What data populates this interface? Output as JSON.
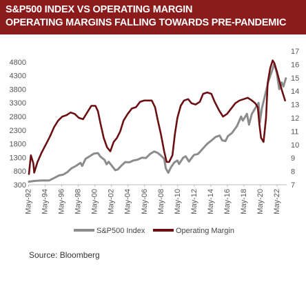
{
  "header": {
    "title": "S&P500 INDEX VS OPERATING MARGIN",
    "subtitle": "OPERATING MARGINS FALLING TOWARDS PRE-PANDEMIC"
  },
  "source": "Source:  Bloomberg",
  "colors": {
    "header_bg": "#8c1b1b",
    "sp500": "#8c8c8c",
    "margin": "#6b0f12",
    "grid": "#dddddd"
  },
  "chart_data": {
    "type": "line",
    "title": "S&P500 INDEX VS OPERATING MARGIN",
    "subtitle": "OPERATING MARGINS FALLING TOWARDS PRE-PANDEMIC",
    "xlim": [
      1992.37,
      2023.5
    ],
    "x_ticks": [
      "May-92",
      "May-94",
      "May-96",
      "May-98",
      "May-00",
      "May-02",
      "May-04",
      "May-06",
      "May-08",
      "May-10",
      "May-12",
      "May-14",
      "May-16",
      "May-18",
      "May-20",
      "May-22"
    ],
    "y_left": {
      "lim": [
        300,
        5200
      ],
      "ticks": [
        "300",
        "800",
        "1300",
        "1800",
        "2300",
        "2800",
        "3300",
        "3800",
        "4300",
        "4800"
      ]
    },
    "y_right": {
      "lim": [
        7,
        17
      ],
      "ticks": [
        "7",
        "8",
        "9",
        "10",
        "11",
        "12",
        "13",
        "14",
        "15",
        "16",
        "17"
      ]
    },
    "legend": {
      "position": "bottom",
      "entries": [
        "S&P500 Index",
        "Operating Margin"
      ]
    },
    "grid": false,
    "series": [
      {
        "name": "S&P500 Index",
        "axis": "left",
        "points": [
          [
            1992.37,
            410
          ],
          [
            1993.0,
            440
          ],
          [
            1994.0,
            460
          ],
          [
            1994.8,
            455
          ],
          [
            1995.5,
            560
          ],
          [
            1996.0,
            640
          ],
          [
            1996.5,
            670
          ],
          [
            1997.0,
            760
          ],
          [
            1997.5,
            900
          ],
          [
            1998.0,
            980
          ],
          [
            1998.6,
            1100
          ],
          [
            1998.8,
            990
          ],
          [
            1999.2,
            1250
          ],
          [
            1999.8,
            1360
          ],
          [
            2000.2,
            1440
          ],
          [
            2000.7,
            1460
          ],
          [
            2001.0,
            1330
          ],
          [
            2001.5,
            1210
          ],
          [
            2001.75,
            1050
          ],
          [
            2002.0,
            1140
          ],
          [
            2002.5,
            950
          ],
          [
            2002.8,
            830
          ],
          [
            2003.1,
            860
          ],
          [
            2003.5,
            990
          ],
          [
            2004.0,
            1130
          ],
          [
            2004.5,
            1120
          ],
          [
            2005.0,
            1190
          ],
          [
            2005.5,
            1220
          ],
          [
            2006.0,
            1290
          ],
          [
            2006.5,
            1280
          ],
          [
            2007.0,
            1430
          ],
          [
            2007.5,
            1520
          ],
          [
            2007.9,
            1470
          ],
          [
            2008.3,
            1370
          ],
          [
            2008.7,
            1250
          ],
          [
            2008.9,
            900
          ],
          [
            2009.2,
            740
          ],
          [
            2009.5,
            930
          ],
          [
            2009.9,
            1110
          ],
          [
            2010.3,
            1190
          ],
          [
            2010.5,
            1060
          ],
          [
            2011.0,
            1290
          ],
          [
            2011.3,
            1340
          ],
          [
            2011.7,
            1150
          ],
          [
            2012.3,
            1390
          ],
          [
            2012.8,
            1430
          ],
          [
            2013.3,
            1600
          ],
          [
            2013.9,
            1800
          ],
          [
            2014.4,
            1920
          ],
          [
            2014.9,
            2050
          ],
          [
            2015.4,
            2100
          ],
          [
            2015.7,
            1930
          ],
          [
            2016.1,
            1900
          ],
          [
            2016.4,
            2080
          ],
          [
            2016.9,
            2200
          ],
          [
            2017.5,
            2450
          ],
          [
            2018.0,
            2800
          ],
          [
            2018.2,
            2650
          ],
          [
            2018.7,
            2900
          ],
          [
            2018.95,
            2500
          ],
          [
            2019.3,
            2900
          ],
          [
            2019.9,
            3200
          ],
          [
            2020.1,
            3300
          ],
          [
            2020.25,
            2580
          ],
          [
            2020.5,
            3100
          ],
          [
            2020.9,
            3600
          ],
          [
            2021.3,
            4100
          ],
          [
            2021.7,
            4450
          ],
          [
            2022.0,
            4750
          ],
          [
            2022.3,
            4400
          ],
          [
            2022.6,
            3800
          ],
          [
            2022.9,
            4050
          ],
          [
            2023.1,
            3900
          ],
          [
            2023.4,
            4200
          ]
        ]
      },
      {
        "name": "Operating Margin",
        "axis": "right",
        "points": [
          [
            1992.37,
            7.8
          ],
          [
            1992.6,
            9.2
          ],
          [
            1992.9,
            8.6
          ],
          [
            1993.0,
            7.9
          ],
          [
            1993.4,
            8.7
          ],
          [
            1993.9,
            9.4
          ],
          [
            1994.4,
            10.0
          ],
          [
            1994.9,
            10.6
          ],
          [
            1995.4,
            11.3
          ],
          [
            1995.9,
            11.8
          ],
          [
            1996.4,
            12.1
          ],
          [
            1996.9,
            12.2
          ],
          [
            1997.4,
            12.4
          ],
          [
            1997.9,
            12.3
          ],
          [
            1998.4,
            12.0
          ],
          [
            1998.9,
            11.9
          ],
          [
            1999.4,
            12.4
          ],
          [
            1999.9,
            12.9
          ],
          [
            2000.4,
            12.9
          ],
          [
            2000.7,
            12.5
          ],
          [
            2001.0,
            11.6
          ],
          [
            2001.4,
            10.5
          ],
          [
            2001.8,
            9.8
          ],
          [
            2002.2,
            9.5
          ],
          [
            2002.6,
            10.2
          ],
          [
            2003.0,
            10.5
          ],
          [
            2003.4,
            11.0
          ],
          [
            2003.8,
            11.8
          ],
          [
            2004.3,
            12.3
          ],
          [
            2004.8,
            12.7
          ],
          [
            2005.3,
            12.8
          ],
          [
            2005.8,
            13.2
          ],
          [
            2006.3,
            13.3
          ],
          [
            2006.8,
            13.3
          ],
          [
            2007.2,
            13.3
          ],
          [
            2007.6,
            12.8
          ],
          [
            2007.9,
            11.9
          ],
          [
            2008.3,
            10.8
          ],
          [
            2008.7,
            9.5
          ],
          [
            2009.0,
            8.7
          ],
          [
            2009.3,
            8.7
          ],
          [
            2009.7,
            9.2
          ],
          [
            2010.0,
            10.8
          ],
          [
            2010.3,
            12.0
          ],
          [
            2010.7,
            12.9
          ],
          [
            2011.1,
            13.3
          ],
          [
            2011.6,
            13.4
          ],
          [
            2012.0,
            13.1
          ],
          [
            2012.5,
            13.0
          ],
          [
            2013.0,
            13.2
          ],
          [
            2013.4,
            13.8
          ],
          [
            2013.9,
            13.9
          ],
          [
            2014.4,
            13.8
          ],
          [
            2014.8,
            13.2
          ],
          [
            2015.3,
            12.6
          ],
          [
            2015.8,
            12.1
          ],
          [
            2016.3,
            12.3
          ],
          [
            2016.8,
            12.7
          ],
          [
            2017.3,
            13.1
          ],
          [
            2017.8,
            13.3
          ],
          [
            2018.3,
            13.4
          ],
          [
            2018.8,
            13.5
          ],
          [
            2019.3,
            13.3
          ],
          [
            2019.7,
            13.1
          ],
          [
            2020.0,
            12.8
          ],
          [
            2020.2,
            11.5
          ],
          [
            2020.4,
            10.5
          ],
          [
            2020.7,
            10.2
          ],
          [
            2021.0,
            12.0
          ],
          [
            2021.2,
            14.6
          ],
          [
            2021.5,
            15.7
          ],
          [
            2021.8,
            16.3
          ],
          [
            2022.0,
            16.1
          ],
          [
            2022.3,
            15.5
          ],
          [
            2022.6,
            14.8
          ],
          [
            2022.9,
            14.1
          ],
          [
            2023.1,
            13.7
          ],
          [
            2023.3,
            13.3
          ]
        ]
      }
    ]
  }
}
